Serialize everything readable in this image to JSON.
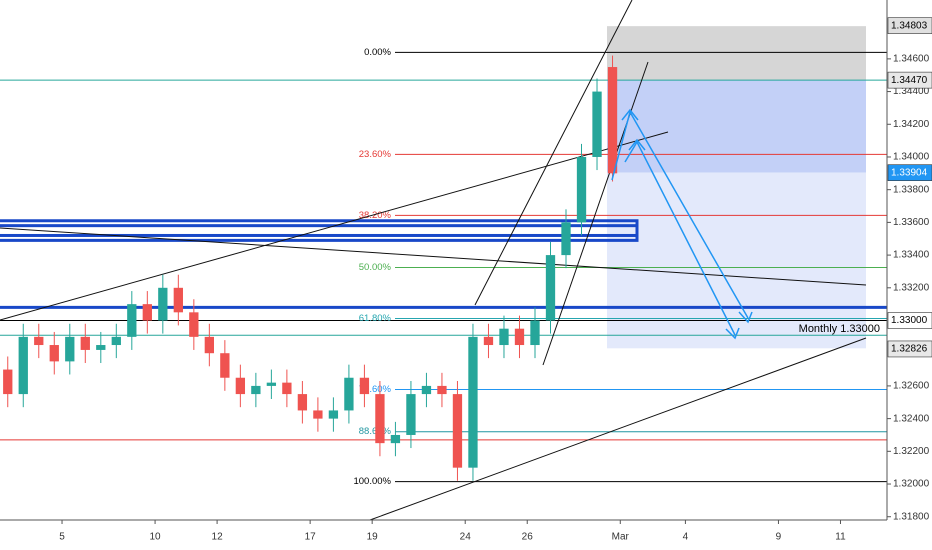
{
  "chart_data": {
    "type": "candlestick",
    "up_color": "#26a69a",
    "down_color": "#ef5350",
    "xlim": [
      0,
      28.6
    ],
    "ylim": [
      1.3178,
      1.3496
    ],
    "x": [
      0.25,
      0.75,
      1.25,
      1.75,
      2.25,
      2.75,
      3.25,
      3.75,
      4.25,
      4.75,
      5.25,
      5.75,
      6.25,
      6.75,
      7.25,
      7.75,
      8.25,
      8.75,
      9.25,
      9.75,
      10.25,
      10.75,
      11.25,
      11.75,
      12.25,
      12.75,
      13.25,
      13.75,
      14.25,
      14.75,
      15.25,
      15.75,
      16.25,
      16.75,
      17.25,
      17.75,
      18.25,
      18.75,
      19.25,
      19.75
    ],
    "open": [
      1.327,
      1.3255,
      1.329,
      1.3285,
      1.3275,
      1.329,
      1.3282,
      1.3285,
      1.329,
      1.331,
      1.33,
      1.332,
      1.3305,
      1.329,
      1.328,
      1.3265,
      1.3255,
      1.326,
      1.3262,
      1.3255,
      1.3245,
      1.324,
      1.3245,
      1.3265,
      1.3255,
      1.3225,
      1.323,
      1.3255,
      1.326,
      1.3255,
      1.321,
      1.329,
      1.3285,
      1.3295,
      1.3285,
      1.33,
      1.334,
      1.336,
      1.34,
      1.3455
    ],
    "high": [
      1.3278,
      1.3298,
      1.3298,
      1.3293,
      1.3298,
      1.3298,
      1.3293,
      1.3298,
      1.3318,
      1.3318,
      1.3328,
      1.3328,
      1.3313,
      1.3298,
      1.3288,
      1.3273,
      1.3268,
      1.327,
      1.327,
      1.3263,
      1.3253,
      1.3253,
      1.3273,
      1.3273,
      1.3263,
      1.3238,
      1.3263,
      1.3268,
      1.3268,
      1.3263,
      1.3298,
      1.3298,
      1.3303,
      1.3303,
      1.3308,
      1.3348,
      1.3368,
      1.3408,
      1.3448,
      1.3462
    ],
    "low": [
      1.3247,
      1.3247,
      1.3277,
      1.3267,
      1.3267,
      1.3274,
      1.3274,
      1.3277,
      1.3282,
      1.3292,
      1.3292,
      1.3297,
      1.3282,
      1.3272,
      1.3257,
      1.3247,
      1.3247,
      1.3252,
      1.3247,
      1.3237,
      1.3232,
      1.3232,
      1.3237,
      1.3247,
      1.3217,
      1.3217,
      1.3222,
      1.3247,
      1.3247,
      1.3202,
      1.3202,
      1.3277,
      1.3277,
      1.3277,
      1.3277,
      1.3292,
      1.3332,
      1.3352,
      1.3392,
      1.3385
    ],
    "close": [
      1.3255,
      1.329,
      1.3285,
      1.3275,
      1.329,
      1.3282,
      1.3285,
      1.329,
      1.331,
      1.33,
      1.332,
      1.3305,
      1.329,
      1.328,
      1.3265,
      1.3255,
      1.326,
      1.3262,
      1.3255,
      1.3245,
      1.324,
      1.3245,
      1.3265,
      1.3255,
      1.3225,
      1.323,
      1.3255,
      1.326,
      1.3255,
      1.321,
      1.329,
      1.3285,
      1.3295,
      1.3285,
      1.33,
      1.334,
      1.336,
      1.34,
      1.344,
      1.339
    ],
    "xticks": [
      {
        "value": 2,
        "label": "5"
      },
      {
        "value": 5,
        "label": "10"
      },
      {
        "value": 7,
        "label": "12"
      },
      {
        "value": 10,
        "label": "17"
      },
      {
        "value": 12,
        "label": "19"
      },
      {
        "value": 15,
        "label": "24"
      },
      {
        "value": 17,
        "label": "26"
      },
      {
        "value": 20,
        "label": "Mar"
      },
      {
        "value": 22.1,
        "label": "4"
      },
      {
        "value": 25.1,
        "label": "9"
      },
      {
        "value": 27.1,
        "label": "11"
      }
    ],
    "yticks": [
      {
        "value": 1.346,
        "label": "1.34600"
      },
      {
        "value": 1.344,
        "label": "1.34400"
      },
      {
        "value": 1.342,
        "label": "1.34200"
      },
      {
        "value": 1.34,
        "label": "1.34000"
      },
      {
        "value": 1.338,
        "label": "1.33800"
      },
      {
        "value": 1.336,
        "label": "1.33600"
      },
      {
        "value": 1.334,
        "label": "1.33400"
      },
      {
        "value": 1.332,
        "label": "1.33200"
      },
      {
        "value": 1.326,
        "label": "1.32600"
      },
      {
        "value": 1.324,
        "label": "1.32400"
      },
      {
        "value": 1.322,
        "label": "1.32200"
      },
      {
        "value": 1.32,
        "label": "1.32000"
      },
      {
        "value": 1.318,
        "label": "1.31800"
      }
    ],
    "fib_levels": [
      {
        "label": "0.00%",
        "value": 1.3464,
        "color": "#000000"
      },
      {
        "label": "23.60%",
        "value": 1.34016,
        "color": "#e53935"
      },
      {
        "label": "38.20%",
        "value": 1.33643,
        "color": "#e53935"
      },
      {
        "label": "50.00%",
        "value": 1.33324,
        "color": "#4caf50"
      },
      {
        "label": "61.80%",
        "value": 1.33012,
        "color": "#26a6b0"
      },
      {
        "label": "78.60%",
        "value": 1.32578,
        "color": "#2196f3"
      },
      {
        "label": "88.60%",
        "value": 1.3232,
        "color": "#2196a0"
      },
      {
        "label": "100.00%",
        "value": 1.32015,
        "color": "#000000"
      }
    ],
    "levels": [
      {
        "value": 1.3447,
        "color": "#26a69a"
      },
      {
        "value": 1.3308,
        "color": "#1848c8"
      },
      {
        "value": 1.33,
        "color": "#000000"
      },
      {
        "value": 1.3291,
        "color": "#26a69a"
      },
      {
        "value": 1.3227,
        "color": "#e53935"
      }
    ],
    "zones": [
      {
        "top": 1.348,
        "bottom": 1.3447,
        "color": "#d6d6d6"
      },
      {
        "top": 1.3447,
        "bottom": 1.33904,
        "color": "#c3d0f7"
      },
      {
        "top": 1.33904,
        "bottom": 1.3283,
        "color": "#e3e9fb"
      }
    ],
    "boxes": [
      {
        "top": 1.3361,
        "bottom": 1.3352,
        "color": "#1848c8"
      },
      {
        "top": 1.3358,
        "bottom": 1.3349,
        "color": "#1848c8"
      }
    ],
    "annotation": "Monthly 1.33000",
    "price_labels": [
      {
        "value": 1.34803,
        "label": "1.34803",
        "bg": "#e0e0e0",
        "fg": "#000000"
      },
      {
        "value": 1.3447,
        "label": "1.34470",
        "bg": "#e8e8e8",
        "fg": "#000000"
      },
      {
        "value": 1.33904,
        "label": "1.33904",
        "bg": "#2196f3",
        "fg": "#ffffff"
      },
      {
        "value": 1.33,
        "label": "1.33000",
        "bg": "#ffffff",
        "fg": "#000000"
      },
      {
        "value": 1.32826,
        "label": "1.32826",
        "bg": "#e8e8e8",
        "fg": "#000000"
      }
    ]
  }
}
